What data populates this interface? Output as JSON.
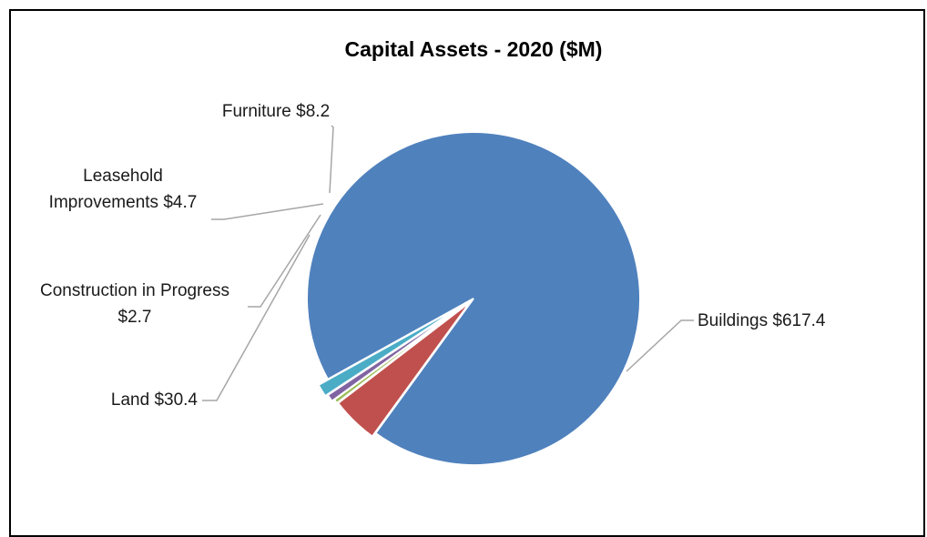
{
  "chart_data": {
    "type": "pie",
    "title": "Capital Assets - 2020 ($M)",
    "slices": [
      {
        "name": "Buildings",
        "value": 617.4,
        "label_lines": [
          "Buildings  $617.4"
        ],
        "color": "#4f81bd"
      },
      {
        "name": "Land",
        "value": 30.4,
        "label_lines": [
          "Land  $30.4"
        ],
        "color": "#c0504d"
      },
      {
        "name": "Construction in Progress",
        "value": 2.7,
        "label_lines": [
          "Construction in Progress",
          "$2.7"
        ],
        "color": "#9bbb59"
      },
      {
        "name": "Leasehold Improvements",
        "value": 4.7,
        "label_lines": [
          "Leasehold",
          "Improvements  $4.7"
        ],
        "color": "#8064a2"
      },
      {
        "name": "Furniture",
        "value": 8.2,
        "label_lines": [
          "Furniture  $8.2"
        ],
        "color": "#4bacc6"
      }
    ],
    "legend": "none"
  }
}
